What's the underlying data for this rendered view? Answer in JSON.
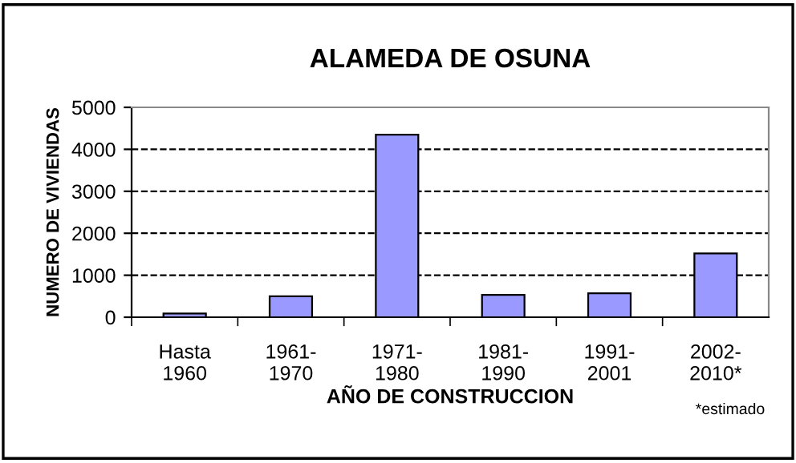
{
  "chart_data": {
    "type": "bar",
    "title": "ALAMEDA DE OSUNA",
    "xlabel": "AÑO DE CONSTRUCCION",
    "ylabel": "NUMERO DE VIVIENDAS",
    "categories": [
      "Hasta\n1960",
      "1961-\n1970",
      "1971-\n1980",
      "1981-\n1990",
      "1991-\n2001",
      "2002-\n2010*"
    ],
    "values": [
      90,
      500,
      4350,
      530,
      570,
      1520
    ],
    "color": "#9999ff",
    "ylim": [
      0,
      5000
    ],
    "yticks": [
      0,
      1000,
      2000,
      3000,
      4000,
      5000
    ],
    "grid": "y",
    "line_style": "dashed",
    "annotations": [
      "*estimado"
    ]
  }
}
